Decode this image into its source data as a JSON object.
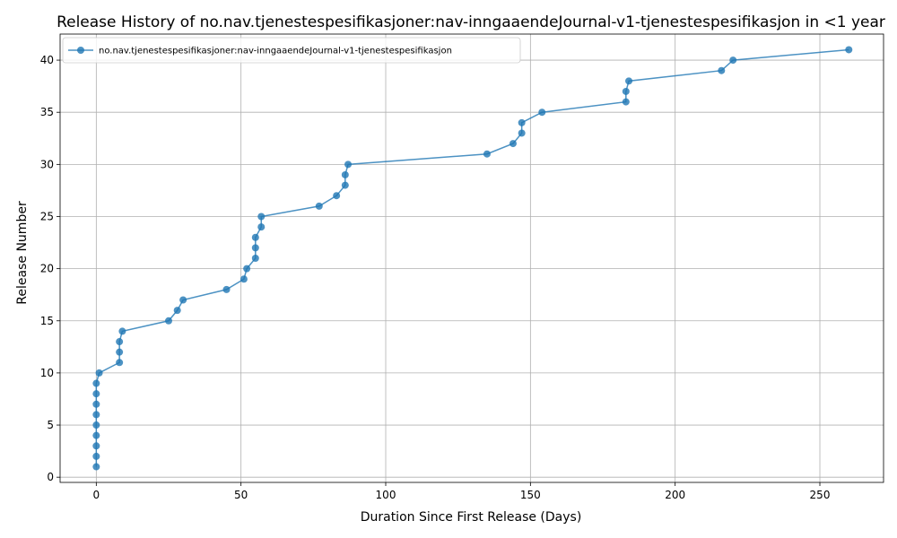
{
  "chart_data": {
    "type": "line",
    "title": "Release History of no.nav.tjenestespesifikasjoner:nav-inngaaendeJournal-v1-tjenestespesifikasjon in <1 year",
    "xlabel": "Duration Since First Release (Days)",
    "ylabel": "Release Number",
    "xlim": [
      -12.5,
      272
    ],
    "ylim": [
      -0.5,
      42.5
    ],
    "xticks": [
      0,
      50,
      100,
      150,
      200,
      250
    ],
    "yticks": [
      0,
      5,
      10,
      15,
      20,
      25,
      30,
      35,
      40
    ],
    "grid": true,
    "legend_position": "top-left",
    "series": [
      {
        "name": "no.nav.tjenestespesifikasjoner:nav-inngaaendeJournal-v1-tjenestespesifikasjon",
        "color": "#1f77b4",
        "marker": "circle",
        "points": [
          [
            0,
            1
          ],
          [
            0,
            2
          ],
          [
            0,
            3
          ],
          [
            0,
            4
          ],
          [
            0,
            5
          ],
          [
            0,
            6
          ],
          [
            0,
            7
          ],
          [
            0,
            8
          ],
          [
            0,
            9
          ],
          [
            1,
            10
          ],
          [
            8,
            11
          ],
          [
            8,
            12
          ],
          [
            8,
            13
          ],
          [
            9,
            14
          ],
          [
            25,
            15
          ],
          [
            28,
            16
          ],
          [
            30,
            17
          ],
          [
            45,
            18
          ],
          [
            51,
            19
          ],
          [
            52,
            20
          ],
          [
            55,
            21
          ],
          [
            55,
            22
          ],
          [
            55,
            23
          ],
          [
            57,
            24
          ],
          [
            57,
            25
          ],
          [
            77,
            26
          ],
          [
            83,
            27
          ],
          [
            86,
            28
          ],
          [
            86,
            29
          ],
          [
            87,
            30
          ],
          [
            135,
            31
          ],
          [
            144,
            32
          ],
          [
            147,
            33
          ],
          [
            147,
            34
          ],
          [
            154,
            35
          ],
          [
            183,
            36
          ],
          [
            183,
            37
          ],
          [
            184,
            38
          ],
          [
            216,
            39
          ],
          [
            220,
            40
          ],
          [
            260,
            41
          ]
        ]
      }
    ]
  }
}
